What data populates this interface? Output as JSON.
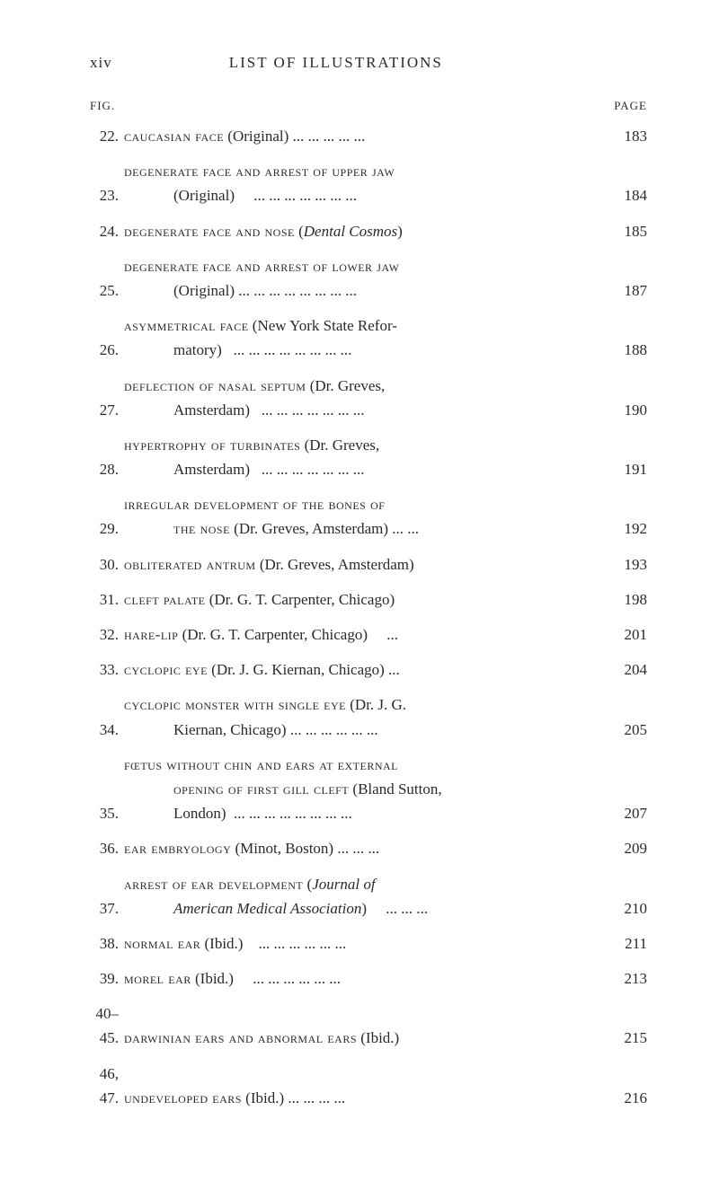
{
  "header": {
    "page_num": "xiv",
    "title": "LIST OF ILLUSTRATIONS"
  },
  "labels": {
    "fig": "FIG.",
    "page": "PAGE"
  },
  "entries": [
    {
      "num": "22.",
      "lines": [
        "<span class='sc'>caucasian face</span> (Original) ... ... ... ... ..."
      ],
      "page": "183"
    },
    {
      "num": "23.",
      "lines": [
        "<span class='sc'>degenerate face and arrest of upper jaw</span>",
        "<span class='indent line'>(Original)&nbsp;&nbsp;&nbsp;&nbsp;&nbsp;... ... ... ... ... ... ...</span>"
      ],
      "page": "184"
    },
    {
      "num": "24.",
      "lines": [
        "<span class='sc'>degenerate face and nose</span> (<span class='italic'>Dental Cosmos</span>)"
      ],
      "page": "185"
    },
    {
      "num": "25.",
      "lines": [
        "<span class='sc'>degenerate face and arrest of lower jaw</span>",
        "<span class='indent line'>(Original) ... ... ... ... ... ... ... ...</span>"
      ],
      "page": "187"
    },
    {
      "num": "26.",
      "lines": [
        "<span class='sc'>asymmetrical face</span> (New York State Refor-",
        "<span class='indent line'>matory)&nbsp;&nbsp;&nbsp;... ... ... ... ... ... ... ...</span>"
      ],
      "page": "188"
    },
    {
      "num": "27.",
      "lines": [
        "<span class='sc'>deflection of nasal septum</span> (Dr. Greves,",
        "<span class='indent line'>Amsterdam)&nbsp;&nbsp;&nbsp;... ... ... ... ... ... ...</span>"
      ],
      "page": "190"
    },
    {
      "num": "28.",
      "lines": [
        "<span class='sc'>hypertrophy of turbinates</span> (Dr. Greves,",
        "<span class='indent line'>Amsterdam)&nbsp;&nbsp;&nbsp;... ... ... ... ... ... ...</span>"
      ],
      "page": "191"
    },
    {
      "num": "29.",
      "lines": [
        "<span class='sc'>irregular development of the bones of</span>",
        "<span class='indent line'><span class='sc'>the nose</span> (Dr. Greves, Amsterdam) ... ...</span>"
      ],
      "page": "192"
    },
    {
      "num": "30.",
      "lines": [
        "<span class='sc'>obliterated antrum</span> (Dr. Greves, Amsterdam)"
      ],
      "page": "193"
    },
    {
      "num": "31.",
      "lines": [
        "<span class='sc'>cleft palate</span> (Dr. G. T. Carpenter, Chicago)"
      ],
      "page": "198"
    },
    {
      "num": "32.",
      "lines": [
        "<span class='sc'>hare-lip</span> (Dr. G. T. Carpenter, Chicago)&nbsp;&nbsp;&nbsp;&nbsp;&nbsp;..."
      ],
      "page": "201"
    },
    {
      "num": "33.",
      "lines": [
        "<span class='sc'>cyclopic eye</span> (Dr. J. G. Kiernan, Chicago) ..."
      ],
      "page": "204"
    },
    {
      "num": "34.",
      "lines": [
        "<span class='sc'>cyclopic monster with single eye</span> (Dr. J. G.",
        "<span class='indent line'>Kiernan, Chicago) ... ... ... ... ... ...</span>"
      ],
      "page": "205"
    },
    {
      "num": "35.",
      "lines": [
        "<span class='sc'>fœtus without chin and ears at external</span>",
        "<span class='indent line'><span class='sc'>opening of first gill cleft</span> (Bland Sutton,</span>",
        "<span class='indent line'>London)&nbsp;&nbsp;... ... ... ... ... ... ... ...</span>"
      ],
      "page": "207"
    },
    {
      "num": "36.",
      "lines": [
        "<span class='sc'>ear embryology</span> (Minot, Boston) ... ... ..."
      ],
      "page": "209"
    },
    {
      "num": "37.",
      "lines": [
        "<span class='sc'>arrest of ear development</span> (<span class='italic'>Journal of</span>",
        "<span class='indent line'><span class='italic'>American Medical Association</span>)&nbsp;&nbsp;&nbsp;&nbsp;&nbsp;... ... ...</span>"
      ],
      "page": "210"
    },
    {
      "num": "38.",
      "lines": [
        "<span class='sc'>normal ear</span> (Ibid.)&nbsp;&nbsp;&nbsp;&nbsp;... ... ... ... ... ..."
      ],
      "page": "211"
    },
    {
      "num": "39.",
      "lines": [
        "<span class='sc'>morel ear</span> (Ibid.)&nbsp;&nbsp;&nbsp;&nbsp;&nbsp;... ... ... ... ... ..."
      ],
      "page": "213"
    },
    {
      "num": "40–45.",
      "lines": [
        "<span class='sc'>darwinian ears and abnormal ears</span> (Ibid.)"
      ],
      "page": "215"
    },
    {
      "num": "46, 47.",
      "lines": [
        "<span class='sc'>undeveloped ears</span> (Ibid.) ... ... ... ..."
      ],
      "page": "216"
    }
  ]
}
